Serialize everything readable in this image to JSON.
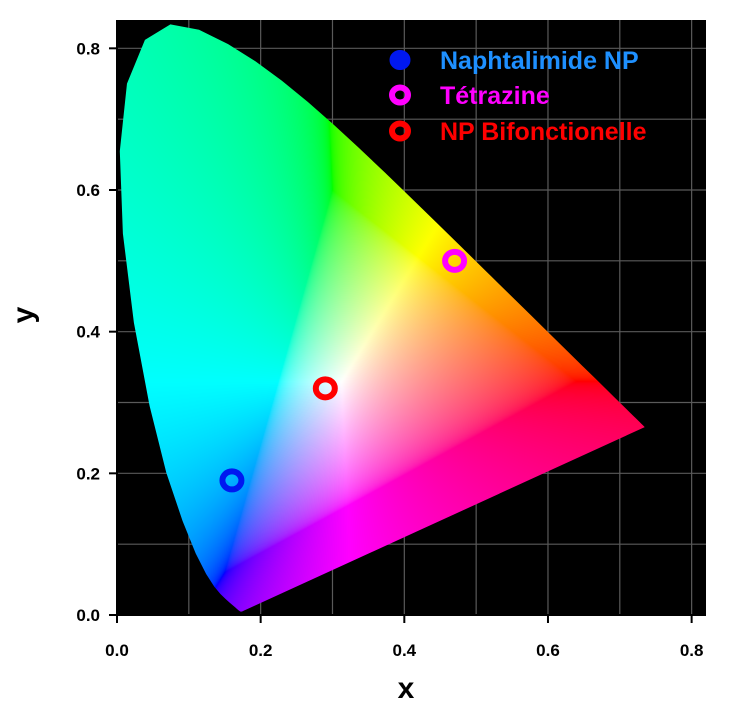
{
  "chart_data": {
    "type": "scatter",
    "title": "",
    "xlabel": "x",
    "ylabel": "y",
    "xlim": [
      0.0,
      0.82
    ],
    "ylim": [
      0.0,
      0.84
    ],
    "xticks": [
      "0.0",
      "0.2",
      "0.4",
      "0.6",
      "0.8"
    ],
    "yticks": [
      "0.0",
      "0.2",
      "0.4",
      "0.6",
      "0.8"
    ],
    "grid": true,
    "background": "CIE 1931 chromaticity diagram",
    "legend_position": "top-right",
    "series": [
      {
        "name": "Naphtalimide NP",
        "x": 0.16,
        "y": 0.19,
        "color": "#0018f0",
        "text_color": "#1e90ff"
      },
      {
        "name": "Tétrazine",
        "x": 0.47,
        "y": 0.5,
        "color": "#ff00ff",
        "text_color": "#ff00ff"
      },
      {
        "name": "NP Bifonctionelle",
        "x": 0.29,
        "y": 0.32,
        "color": "#ff0000",
        "text_color": "#ff0000"
      }
    ]
  }
}
